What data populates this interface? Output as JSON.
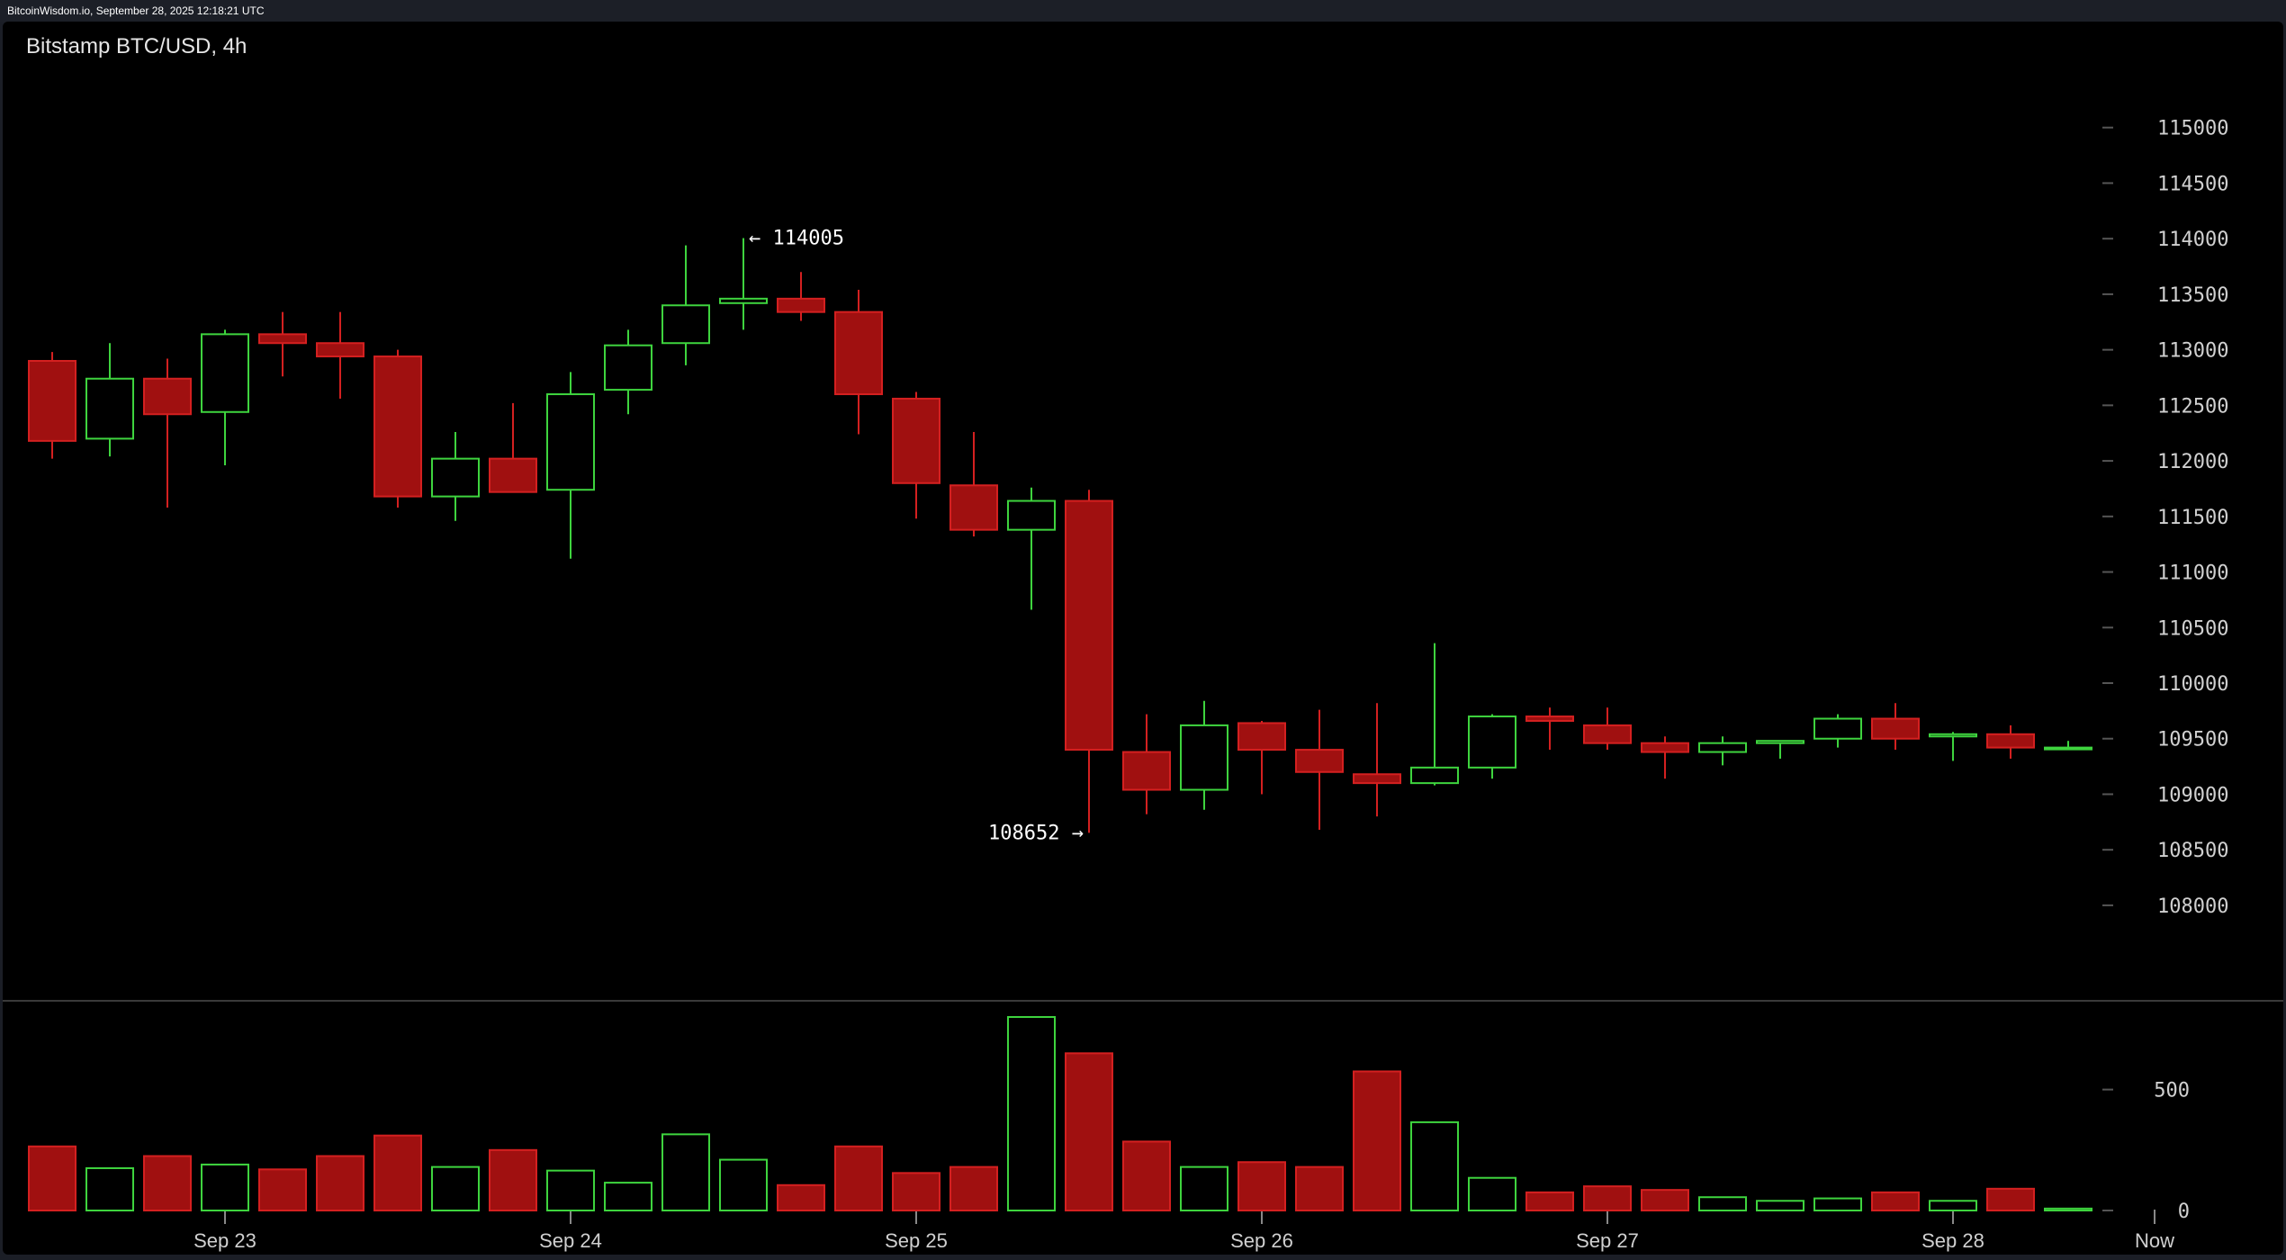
{
  "header": {
    "source_line": "BitcoinWisdom.io, September 28, 2025 12:18:21 UTC"
  },
  "colors": {
    "background": "#000000",
    "frame": "#1b1e26",
    "up": "#3ed43e",
    "down": "#a01010",
    "down_edge": "#d42020",
    "grid_tick": "#555555"
  },
  "chart_data": [
    {
      "type": "candlestick",
      "title": "Bitstamp BTC/USD, 4h",
      "ylim": [
        107400,
        115500
      ],
      "yticks": [
        108000,
        108500,
        109000,
        109500,
        110000,
        110500,
        111000,
        111500,
        112000,
        112500,
        113000,
        113500,
        114000,
        114500,
        115000
      ],
      "xticks": [
        {
          "label": "Sep 23",
          "candle": 3
        },
        {
          "label": "Sep 24",
          "candle": 9
        },
        {
          "label": "Sep 25",
          "candle": 15
        },
        {
          "label": "Sep 26",
          "candle": 21
        },
        {
          "label": "Sep 27",
          "candle": 27
        },
        {
          "label": "Sep 28",
          "candle": 33
        },
        {
          "label": "Now",
          "candle": 36.5
        }
      ],
      "candles": [
        {
          "o": 112900,
          "h": 112980,
          "l": 112020,
          "c": 112180
        },
        {
          "o": 112200,
          "h": 113060,
          "l": 112040,
          "c": 112740
        },
        {
          "o": 112740,
          "h": 112920,
          "l": 111580,
          "c": 112420
        },
        {
          "o": 112440,
          "h": 113180,
          "l": 111960,
          "c": 113140
        },
        {
          "o": 113140,
          "h": 113340,
          "l": 112760,
          "c": 113060
        },
        {
          "o": 113060,
          "h": 113340,
          "l": 112560,
          "c": 112940
        },
        {
          "o": 112940,
          "h": 113000,
          "l": 111580,
          "c": 111680
        },
        {
          "o": 111680,
          "h": 112260,
          "l": 111460,
          "c": 112020
        },
        {
          "o": 112020,
          "h": 112520,
          "l": 111720,
          "c": 111720
        },
        {
          "o": 111740,
          "h": 112800,
          "l": 111120,
          "c": 112600
        },
        {
          "o": 112640,
          "h": 113180,
          "l": 112420,
          "c": 113040
        },
        {
          "o": 113060,
          "h": 113940,
          "l": 112860,
          "c": 113400
        },
        {
          "o": 113420,
          "h": 114005,
          "l": 113180,
          "c": 113460
        },
        {
          "o": 113460,
          "h": 113700,
          "l": 113260,
          "c": 113340
        },
        {
          "o": 113340,
          "h": 113540,
          "l": 112240,
          "c": 112600
        },
        {
          "o": 112560,
          "h": 112620,
          "l": 111480,
          "c": 111800
        },
        {
          "o": 111780,
          "h": 112260,
          "l": 111320,
          "c": 111380
        },
        {
          "o": 111380,
          "h": 111760,
          "l": 110660,
          "c": 111640
        },
        {
          "o": 111640,
          "h": 111740,
          "l": 108652,
          "c": 109400
        },
        {
          "o": 109380,
          "h": 109720,
          "l": 108820,
          "c": 109040
        },
        {
          "o": 109040,
          "h": 109840,
          "l": 108860,
          "c": 109620
        },
        {
          "o": 109640,
          "h": 109660,
          "l": 109000,
          "c": 109400
        },
        {
          "o": 109400,
          "h": 109760,
          "l": 108680,
          "c": 109200
        },
        {
          "o": 109180,
          "h": 109820,
          "l": 108800,
          "c": 109100
        },
        {
          "o": 109100,
          "h": 110360,
          "l": 109080,
          "c": 109240
        },
        {
          "o": 109240,
          "h": 109720,
          "l": 109140,
          "c": 109700
        },
        {
          "o": 109700,
          "h": 109780,
          "l": 109400,
          "c": 109660
        },
        {
          "o": 109620,
          "h": 109780,
          "l": 109400,
          "c": 109460
        },
        {
          "o": 109460,
          "h": 109520,
          "l": 109140,
          "c": 109380
        },
        {
          "o": 109380,
          "h": 109520,
          "l": 109260,
          "c": 109460
        },
        {
          "o": 109460,
          "h": 109480,
          "l": 109320,
          "c": 109480
        },
        {
          "o": 109500,
          "h": 109720,
          "l": 109420,
          "c": 109680
        },
        {
          "o": 109680,
          "h": 109820,
          "l": 109400,
          "c": 109500
        },
        {
          "o": 109520,
          "h": 109560,
          "l": 109300,
          "c": 109540
        },
        {
          "o": 109540,
          "h": 109620,
          "l": 109320,
          "c": 109420
        },
        {
          "o": 109420,
          "h": 109480,
          "l": 109400,
          "c": 109420
        }
      ],
      "annotations": {
        "high": {
          "text": "← 114005",
          "candle": 12,
          "value": 114005
        },
        "low": {
          "text": "108652 →",
          "candle": 18,
          "value": 108652
        }
      }
    },
    {
      "type": "bar",
      "name": "volume",
      "ylim": [
        0,
        800
      ],
      "yticks": [
        0,
        500
      ],
      "values": [
        265,
        175,
        225,
        190,
        170,
        225,
        310,
        180,
        250,
        165,
        115,
        315,
        210,
        105,
        265,
        155,
        180,
        800,
        650,
        285,
        180,
        200,
        180,
        575,
        365,
        135,
        75,
        100,
        85,
        55,
        40,
        50,
        75,
        40,
        90,
        8
      ]
    }
  ]
}
